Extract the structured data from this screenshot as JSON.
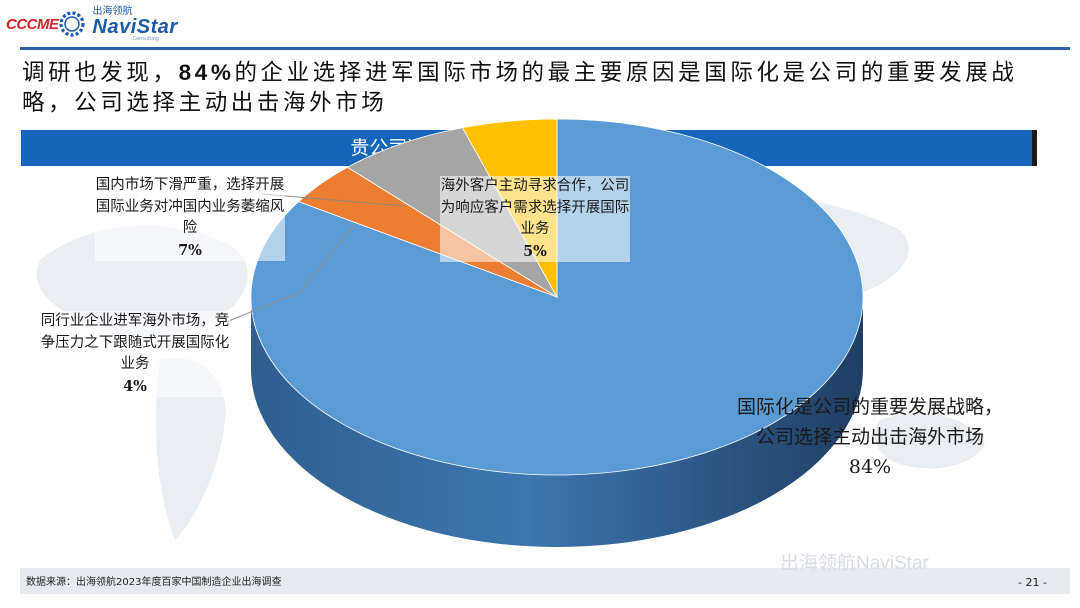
{
  "brand": {
    "logo_left": "CCCME",
    "logo_right_cn": "出海领航",
    "logo_right_en": "NaviStar",
    "logo_right_sub": "Consulting"
  },
  "headline": {
    "part1": "调研也发现，",
    "highlight": "84%",
    "part2": "的企业选择进军国际市场的最主要原因是国际化是公司的重要发展战略，公司选择主动出击海外市场"
  },
  "chart_data": {
    "type": "pie",
    "title": "贵公司选择进军国际市场的最主要原因是?",
    "slices": [
      {
        "label": "国际化是公司的重要发展战略，公司选择主动出击海外市场",
        "label_line1": "国际化是公司的重要发展战略，",
        "label_line2": "公司选择主动出击海外市场",
        "value": 84,
        "display": "84%",
        "color": "#5b9bd5"
      },
      {
        "label": "同行业企业进军海外市场，竞争压力之下跟随式开展国际化业务",
        "value": 4,
        "display": "4%",
        "color": "#ed7d31"
      },
      {
        "label": "国内市场下滑严重，选择开展国际业务对冲国内业务萎缩风险",
        "value": 7,
        "display": "7%",
        "color": "#a5a5a5"
      },
      {
        "label": "海外客户主动寻求合作，公司为响应客户需求选择开展国际业务",
        "value": 5,
        "display": "5%",
        "color": "#ffc000"
      }
    ]
  },
  "footer": {
    "source": "数据来源：出海领航2023年度百家中国制造企业出海调查",
    "watermark": "出海领航NaviStar",
    "page": "- 21 -"
  }
}
